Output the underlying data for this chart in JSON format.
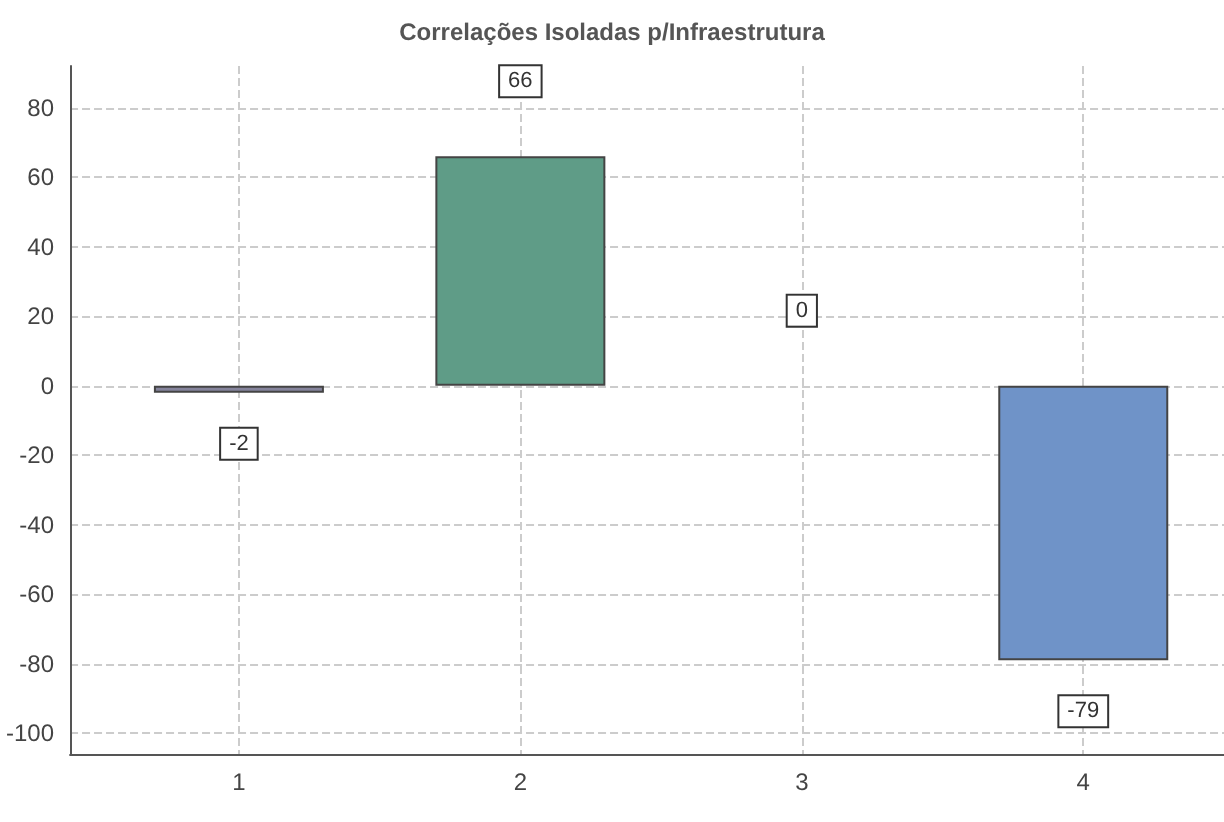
{
  "chart_data": {
    "type": "bar",
    "title": "Correlações Isoladas p/Infraestrutura",
    "x": [
      1,
      2,
      3,
      4
    ],
    "xlim": [
      0.4,
      4.5
    ],
    "xticks": [
      1,
      2,
      3,
      4
    ],
    "values": [
      -2,
      66,
      0,
      -79
    ],
    "colors": [
      "#85849c",
      "#5f9c87",
      null,
      "#6f93c8"
    ],
    "ylim": [
      -106,
      92
    ],
    "yticks": [
      -100,
      -80,
      -60,
      -40,
      -20,
      0,
      20,
      40,
      60,
      80
    ],
    "grid": true,
    "data_labels": true
  }
}
